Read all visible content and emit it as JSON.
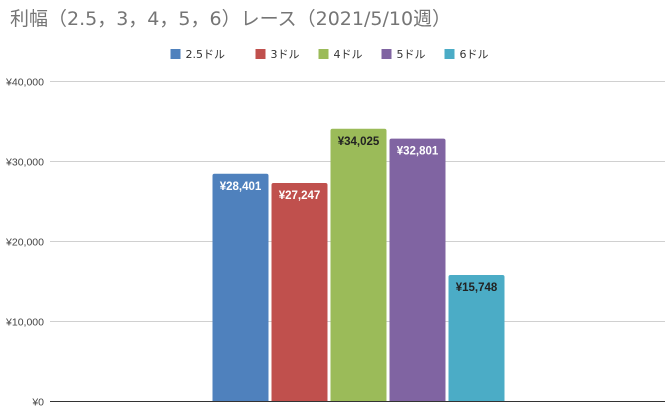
{
  "chart_data": {
    "type": "bar",
    "title": "利幅（2.5，3，4，5，6）レース（2021/5/10週）",
    "categories": [
      ""
    ],
    "series": [
      {
        "name": "2.5ドル",
        "values": [
          28401
        ],
        "label": "¥28,401",
        "color": "#4f81bd",
        "label_color": "#ffffff"
      },
      {
        "name": "3ドル",
        "values": [
          27247
        ],
        "label": "¥27,247",
        "color": "#c0504d",
        "label_color": "#ffffff"
      },
      {
        "name": "4ドル",
        "values": [
          34025
        ],
        "label": "¥34,025",
        "color": "#9bbb59",
        "label_color": "#222222"
      },
      {
        "name": "5ドル",
        "values": [
          32801
        ],
        "label": "¥32,801",
        "color": "#8064a2",
        "label_color": "#ffffff"
      },
      {
        "name": "6ドル",
        "values": [
          15748
        ],
        "label": "¥15,748",
        "color": "#4bacc6",
        "label_color": "#222222"
      }
    ],
    "ylim": [
      0,
      40000
    ],
    "yticks": [
      {
        "value": 0,
        "label": "¥0"
      },
      {
        "value": 10000,
        "label": "¥10,000"
      },
      {
        "value": 20000,
        "label": "¥20,000"
      },
      {
        "value": 30000,
        "label": "¥30,000"
      },
      {
        "value": 40000,
        "label": "¥40,000"
      }
    ],
    "grid": true,
    "legend": "top-center",
    "xlabel": "",
    "ylabel": ""
  }
}
